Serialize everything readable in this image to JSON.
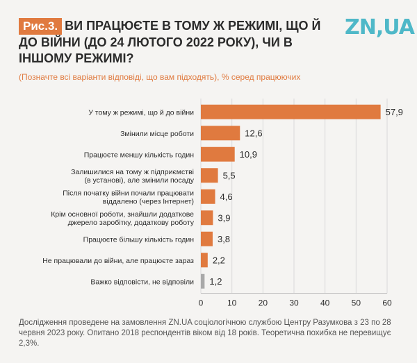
{
  "header": {
    "fig_label": "Рис.3.",
    "title": "ВИ ПРАЦЮЄТЕ В ТОМУ Ж РЕЖИМІ, ЩО Й ДО ВІЙНИ (ДО 24 ЛЮТОГО 2022 РОКУ), ЧИ В ІНШОМУ РЕЖИМІ?",
    "logo": "ZN,UA"
  },
  "subtitle": "(Позначте всі варіанти відповіді, що вам підходять), % серед працюючих",
  "footnote": "Дослідження проведене на замовлення ZN.UA соціологічною службою Центру Разумкова з 23 по 28 червня 2023 року. Опитано 2018 респондентів віком від 18 років. Теоретична похибка не перевищує 2,3%.",
  "colors": {
    "accent": "#e07a3f",
    "neutral": "#a9a9a9",
    "logo": "#4fb8c8",
    "grid": "#d9d9d9"
  },
  "chart_data": {
    "type": "bar",
    "orientation": "horizontal",
    "categories": [
      [
        "У тому ж режимі, що й до війни"
      ],
      [
        "Змінили місце роботи"
      ],
      [
        "Працюєте меншу кількість годин"
      ],
      [
        "Залишилися на тому ж підприємстві",
        "(в установі), але змінили посаду"
      ],
      [
        "Після початку війни почали працювати",
        "віддалено (через Інтернет)"
      ],
      [
        "Крім основної роботи, знайшли додаткове",
        "джерело заробітку, додаткову роботу"
      ],
      [
        "Працюєте більшу кількість годин"
      ],
      [
        "Не працювали до війни, але працюєте зараз"
      ],
      [
        "Важко відповісти, не відповіли"
      ]
    ],
    "values": [
      57.9,
      12.6,
      10.9,
      5.5,
      4.6,
      3.9,
      3.8,
      2.2,
      1.2
    ],
    "value_labels": [
      "57,9",
      "12,6",
      "10,9",
      "5,5",
      "4,6",
      "3,9",
      "3,8",
      "2,2",
      "1,2"
    ],
    "bar_colors": [
      "#e07a3f",
      "#e07a3f",
      "#e07a3f",
      "#e07a3f",
      "#e07a3f",
      "#e07a3f",
      "#e07a3f",
      "#e07a3f",
      "#a9a9a9"
    ],
    "xlim": [
      0,
      60
    ],
    "xticks": [
      0,
      10,
      20,
      30,
      40,
      50,
      60
    ],
    "grid": true
  }
}
